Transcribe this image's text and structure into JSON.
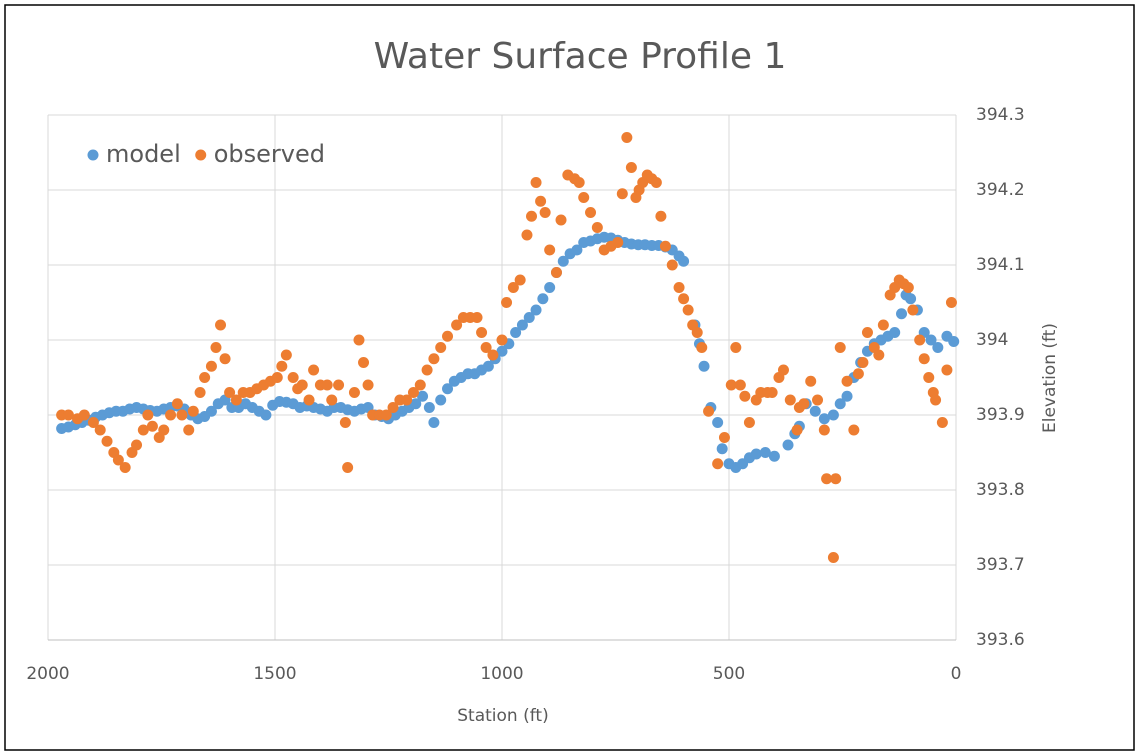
{
  "chart_data": {
    "type": "scatter",
    "title": "Water Surface Profile 1",
    "x_label": "Station (ft)",
    "y_label": "Elevation (ft)",
    "xlim": [
      2000,
      0
    ],
    "xticks": [
      2000,
      1500,
      1000,
      500,
      0
    ],
    "ylim": [
      393.6,
      394.3
    ],
    "yticks": [
      393.6,
      393.7,
      393.8,
      393.9,
      394,
      394.1,
      394.2,
      394.3
    ],
    "grid": true,
    "legend": "upper left",
    "y_axis_position": "right",
    "series": [
      {
        "name": "model",
        "color": "#5b9bd5",
        "x": [
          1970,
          1955,
          1940,
          1925,
          1910,
          1895,
          1880,
          1865,
          1850,
          1835,
          1820,
          1805,
          1790,
          1775,
          1760,
          1745,
          1730,
          1715,
          1700,
          1685,
          1670,
          1655,
          1640,
          1625,
          1610,
          1595,
          1580,
          1565,
          1550,
          1535,
          1520,
          1505,
          1490,
          1475,
          1460,
          1445,
          1430,
          1415,
          1400,
          1385,
          1370,
          1355,
          1340,
          1325,
          1310,
          1295,
          1280,
          1265,
          1250,
          1235,
          1220,
          1205,
          1190,
          1175,
          1160,
          1150,
          1135,
          1120,
          1105,
          1090,
          1075,
          1060,
          1045,
          1030,
          1015,
          1000,
          985,
          970,
          955,
          940,
          925,
          910,
          895,
          880,
          865,
          850,
          835,
          820,
          805,
          790,
          775,
          760,
          745,
          730,
          715,
          700,
          685,
          670,
          655,
          640,
          625,
          610,
          600,
          575,
          565,
          555,
          540,
          525,
          515,
          500,
          485,
          470,
          455,
          440,
          420,
          400,
          370,
          355,
          345,
          330,
          310,
          290,
          270,
          255,
          240,
          225,
          210,
          195,
          180,
          165,
          150,
          135,
          120,
          110,
          100,
          85,
          70,
          55,
          40,
          20,
          5
        ],
        "values": [
          393.882,
          393.884,
          393.887,
          393.89,
          393.893,
          393.897,
          393.9,
          393.903,
          393.905,
          393.905,
          393.908,
          393.91,
          393.908,
          393.906,
          393.905,
          393.908,
          393.91,
          393.912,
          393.908,
          393.9,
          393.895,
          393.898,
          393.905,
          393.915,
          393.92,
          393.91,
          393.91,
          393.915,
          393.91,
          393.905,
          393.9,
          393.913,
          393.918,
          393.917,
          393.915,
          393.91,
          393.912,
          393.91,
          393.908,
          393.905,
          393.91,
          393.91,
          393.907,
          393.905,
          393.908,
          393.91,
          393.9,
          393.898,
          393.895,
          393.9,
          393.905,
          393.91,
          393.915,
          393.925,
          393.91,
          393.89,
          393.92,
          393.935,
          393.945,
          393.95,
          393.955,
          393.955,
          393.96,
          393.965,
          393.975,
          393.985,
          393.995,
          394.01,
          394.02,
          394.03,
          394.04,
          394.055,
          394.07,
          394.09,
          394.105,
          394.115,
          394.12,
          394.13,
          394.132,
          394.135,
          394.137,
          394.136,
          394.133,
          394.13,
          394.128,
          394.127,
          394.127,
          394.126,
          394.126,
          394.124,
          394.12,
          394.112,
          394.105,
          394.02,
          393.995,
          393.965,
          393.91,
          393.89,
          393.855,
          393.835,
          393.83,
          393.835,
          393.843,
          393.848,
          393.85,
          393.845,
          393.86,
          393.875,
          393.885,
          393.915,
          393.905,
          393.895,
          393.9,
          393.915,
          393.925,
          393.95,
          393.97,
          393.985,
          393.995,
          394.0,
          394.005,
          394.01,
          394.035,
          394.06,
          394.055,
          394.04,
          394.01,
          394.0,
          393.99,
          394.005,
          393.998
        ]
      },
      {
        "name": "observed",
        "color": "#ed7d31",
        "x": [
          1970,
          1955,
          1935,
          1920,
          1900,
          1885,
          1870,
          1855,
          1845,
          1830,
          1815,
          1805,
          1790,
          1780,
          1770,
          1755,
          1745,
          1730,
          1715,
          1705,
          1690,
          1680,
          1665,
          1655,
          1640,
          1630,
          1620,
          1610,
          1600,
          1585,
          1570,
          1555,
          1540,
          1525,
          1510,
          1495,
          1485,
          1475,
          1460,
          1450,
          1440,
          1425,
          1415,
          1400,
          1385,
          1375,
          1360,
          1345,
          1340,
          1325,
          1315,
          1305,
          1295,
          1285,
          1270,
          1255,
          1240,
          1225,
          1210,
          1195,
          1180,
          1165,
          1150,
          1135,
          1120,
          1100,
          1085,
          1070,
          1055,
          1045,
          1035,
          1020,
          1000,
          990,
          975,
          960,
          945,
          935,
          925,
          915,
          905,
          895,
          880,
          870,
          855,
          840,
          830,
          820,
          805,
          790,
          775,
          760,
          745,
          735,
          725,
          715,
          705,
          698,
          690,
          680,
          670,
          660,
          650,
          640,
          625,
          610,
          600,
          590,
          580,
          570,
          560,
          545,
          525,
          510,
          495,
          485,
          475,
          465,
          455,
          440,
          430,
          415,
          405,
          390,
          380,
          365,
          350,
          345,
          335,
          320,
          305,
          290,
          285,
          270,
          265,
          255,
          240,
          225,
          215,
          205,
          195,
          180,
          170,
          160,
          145,
          135,
          125,
          115,
          105,
          95,
          80,
          70,
          60,
          50,
          45,
          30,
          20,
          10
        ],
        "values": [
          393.9,
          393.9,
          393.895,
          393.9,
          393.89,
          393.88,
          393.865,
          393.85,
          393.84,
          393.83,
          393.85,
          393.86,
          393.88,
          393.9,
          393.885,
          393.87,
          393.88,
          393.9,
          393.915,
          393.9,
          393.88,
          393.905,
          393.93,
          393.95,
          393.965,
          393.99,
          394.02,
          393.975,
          393.93,
          393.92,
          393.93,
          393.93,
          393.935,
          393.94,
          393.945,
          393.95,
          393.965,
          393.98,
          393.95,
          393.935,
          393.94,
          393.92,
          393.96,
          393.94,
          393.94,
          393.92,
          393.94,
          393.89,
          393.83,
          393.93,
          394.0,
          393.97,
          393.94,
          393.9,
          393.9,
          393.9,
          393.91,
          393.92,
          393.92,
          393.93,
          393.94,
          393.96,
          393.975,
          393.99,
          394.005,
          394.02,
          394.03,
          394.03,
          394.03,
          394.01,
          393.99,
          393.98,
          394.0,
          394.05,
          394.07,
          394.08,
          394.14,
          394.165,
          394.21,
          394.185,
          394.17,
          394.12,
          394.09,
          394.16,
          394.22,
          394.215,
          394.21,
          394.19,
          394.17,
          394.15,
          394.12,
          394.125,
          394.13,
          394.195,
          394.27,
          394.23,
          394.19,
          394.2,
          394.21,
          394.22,
          394.215,
          394.21,
          394.165,
          394.125,
          394.1,
          394.07,
          394.055,
          394.04,
          394.02,
          394.01,
          393.99,
          393.905,
          393.835,
          393.87,
          393.94,
          393.99,
          393.94,
          393.925,
          393.89,
          393.92,
          393.93,
          393.93,
          393.93,
          393.95,
          393.96,
          393.92,
          393.88,
          393.91,
          393.915,
          393.945,
          393.92,
          393.88,
          393.815,
          393.71,
          393.815,
          393.99,
          393.945,
          393.88,
          393.955,
          393.97,
          394.01,
          393.99,
          393.98,
          394.02,
          394.06,
          394.07,
          394.08,
          394.075,
          394.07,
          394.04,
          394.0,
          393.975,
          393.95,
          393.93,
          393.92,
          393.89,
          393.96,
          394.05
        ]
      }
    ]
  }
}
